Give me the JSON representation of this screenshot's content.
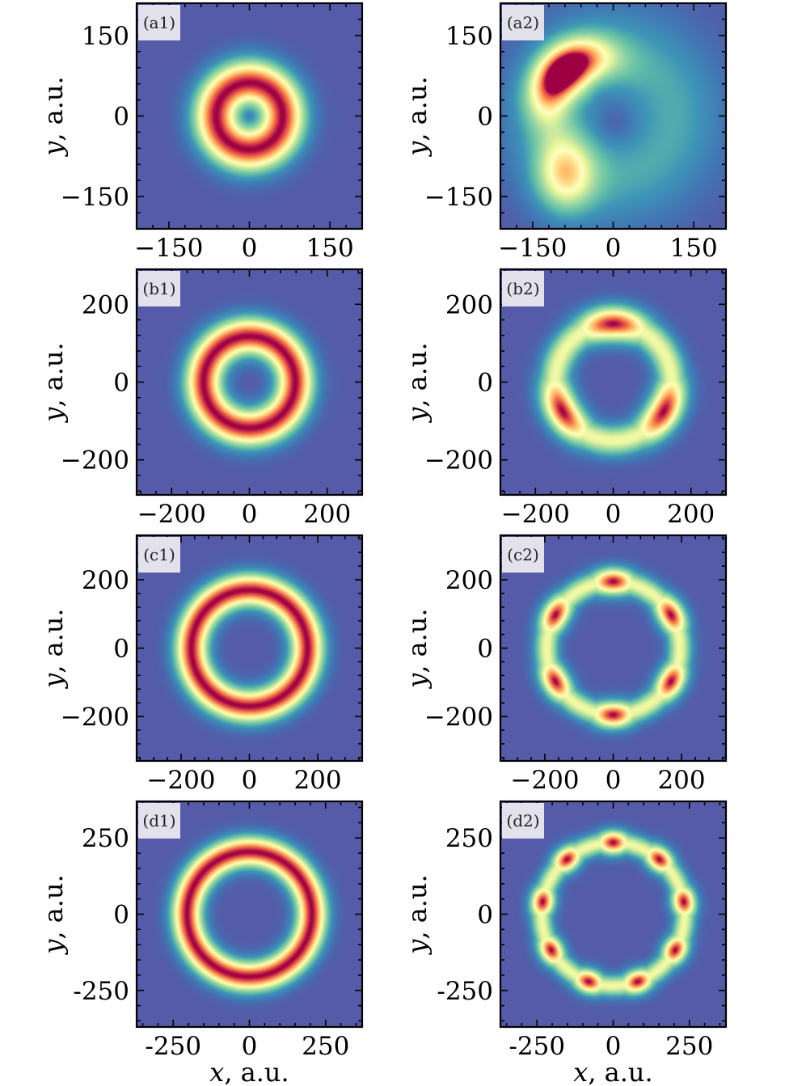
{
  "chart_data": [
    {
      "type": "heatmap",
      "panel": "(a1)",
      "x_ticks": [
        "−150",
        "0",
        "150"
      ],
      "y_ticks": [
        "150",
        "0",
        "−150"
      ],
      "tick_values": [
        -150,
        0,
        150
      ],
      "extent": [
        -210,
        210
      ],
      "ylabel_var": "y",
      "ylabel_unit": ", a.u.",
      "pattern": {
        "kind": "ring",
        "r1": 62,
        "w1": 44,
        "inner": 0.55
      }
    },
    {
      "type": "heatmap",
      "panel": "(a2)",
      "x_ticks": [
        "−150",
        "0",
        "150"
      ],
      "y_ticks": [
        "150",
        "0",
        "−150"
      ],
      "tick_values": [
        -150,
        0,
        150
      ],
      "extent": [
        -210,
        210
      ],
      "ylabel_var": "y",
      "ylabel_unit": ", a.u.",
      "pattern": {
        "kind": "crescent"
      }
    },
    {
      "type": "heatmap",
      "panel": "(b1)",
      "x_ticks": [
        "−200",
        "0",
        "200"
      ],
      "y_ticks": [
        "200",
        "0",
        "−200"
      ],
      "tick_values": [
        -200,
        0,
        200
      ],
      "extent": [
        -290,
        290
      ],
      "ylabel_var": "y",
      "ylabel_unit": ", a.u.",
      "pattern": {
        "kind": "ring",
        "r1": 118,
        "w1": 50,
        "inner": 0.2
      }
    },
    {
      "type": "heatmap",
      "panel": "(b2)",
      "x_ticks": [
        "−200",
        "0",
        "200"
      ],
      "y_ticks": [
        "200",
        "0",
        "−200"
      ],
      "tick_values": [
        -200,
        0,
        200
      ],
      "extent": [
        -290,
        290
      ],
      "ylabel_var": "y",
      "ylabel_unit": ", a.u.",
      "pattern": {
        "kind": "petals",
        "n": 3,
        "r": 150,
        "w": 45,
        "phase": 1.5708
      }
    },
    {
      "type": "heatmap",
      "panel": "(c1)",
      "x_ticks": [
        "−200",
        "0",
        "200"
      ],
      "y_ticks": [
        "200",
        "0",
        "−200"
      ],
      "tick_values": [
        -200,
        0,
        200
      ],
      "extent": [
        -330,
        330
      ],
      "ylabel_var": "y",
      "ylabel_unit": ", a.u.",
      "pattern": {
        "kind": "ring",
        "r1": 170,
        "w1": 50,
        "inner": 0.1
      }
    },
    {
      "type": "heatmap",
      "panel": "(c2)",
      "x_ticks": [
        "−200",
        "0",
        "200"
      ],
      "y_ticks": [
        "200",
        "0",
        "−200"
      ],
      "tick_values": [
        -200,
        0,
        200
      ],
      "extent": [
        -330,
        330
      ],
      "ylabel_var": "y",
      "ylabel_unit": ", a.u.",
      "pattern": {
        "kind": "petals",
        "n": 6,
        "r": 195,
        "w": 40,
        "phase": 1.5708
      }
    },
    {
      "type": "heatmap",
      "panel": "(d1)",
      "x_ticks": [
        "-250",
        "0",
        "250"
      ],
      "y_ticks": [
        "250",
        "0",
        "-250"
      ],
      "tick_values": [
        -250,
        0,
        250
      ],
      "extent": [
        -370,
        370
      ],
      "ylabel_var": "y",
      "ylabel_unit": ", a.u.",
      "xlabel_var": "x",
      "xlabel_unit": ", a.u.",
      "pattern": {
        "kind": "ring",
        "r1": 205,
        "w1": 52,
        "inner": 0.05
      }
    },
    {
      "type": "heatmap",
      "panel": "(d2)",
      "x_ticks": [
        "-250",
        "0",
        "250"
      ],
      "y_ticks": [
        "250",
        "0",
        "-250"
      ],
      "tick_values": [
        -250,
        0,
        250
      ],
      "extent": [
        -370,
        370
      ],
      "ylabel_var": "y",
      "ylabel_unit": ", a.u.",
      "xlabel_var": "x",
      "xlabel_unit": ", a.u.",
      "pattern": {
        "kind": "petals",
        "n": 9,
        "r": 235,
        "w": 40,
        "phase": 1.5708
      }
    }
  ]
}
